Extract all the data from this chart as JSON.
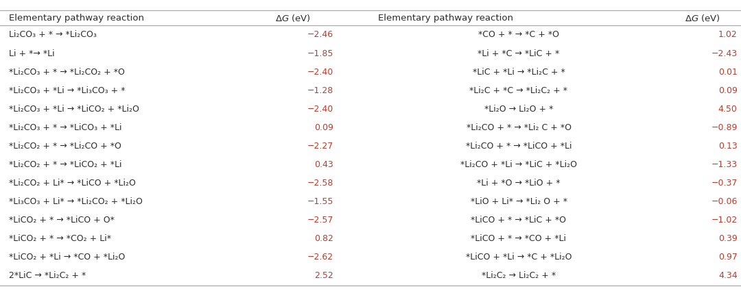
{
  "left_reactions": [
    "Li₂CO₃ + * → *Li₂CO₃",
    "Li + *→ *Li",
    "*Li₂CO₃ + * → *Li₂CO₂ + *O",
    "*Li₂CO₃ + *Li → *Li₃CO₃ + *",
    "*Li₂CO₃ + *Li → *LiCO₂ + *Li₂O",
    "*Li₂CO₃ + * → *LiCO₃ + *Li",
    "*Li₂CO₂ + * → *Li₂CO + *O",
    "*Li₂CO₂ + * → *LiCO₂ + *Li",
    "*Li₂CO₂ + Li* → *LiCO + *Li₂O",
    "*Li₃CO₃ + Li* → *Li₂CO₂ + *Li₂O",
    "*LiCO₂ + * → *LiCO + O*",
    "*LiCO₂ + * → *CO₂ + Li*",
    "*LiCO₂ + *Li → *CO + *Li₂O",
    "2*LiC → *Li₂C₂ + *"
  ],
  "left_dg": [
    "−2.46",
    "−1.85",
    "−2.40",
    "−1.28",
    "−2.40",
    "0.09",
    "−2.27",
    "0.43",
    "−2.58",
    "−1.55",
    "−2.57",
    "0.82",
    "−2.62",
    "2.52"
  ],
  "right_reactions": [
    "*CO + * → *C + *O",
    "*Li + *C → *LiC + *",
    "*LiC + *Li → *Li₂C + *",
    "*Li₂C + *C → *Li₂C₂ + *",
    "*Li₂O → Li₂O + *",
    "*Li₂CO + * → *Li₂ C + *O",
    "*Li₂CO + * → *LiCO + *Li",
    "*Li₂CO + *Li → *LiC + *Li₂O",
    "*Li + *O → *LiO + *",
    "*LiO + Li* → *Li₂ O + *",
    "*LiCO + * → *LiC + *O",
    "*LiCO + * → *CO + *Li",
    "*LiCO + *Li → *C + *Li₂O",
    "*Li₂C₂ → Li₂C₂ + *"
  ],
  "right_dg": [
    "1.02",
    "−2.43",
    "0.01",
    "0.09",
    "4.50",
    "−0.89",
    "0.13",
    "−1.33",
    "−0.37",
    "−0.06",
    "−1.02",
    "0.39",
    "0.97",
    "4.34"
  ],
  "header": "Elementary pathway reaction",
  "bg_color": "#ffffff",
  "text_color": "#2b2b2b",
  "dg_color": "#c0392b",
  "header_color": "#2b2b2b",
  "line_color": "#aaaaaa",
  "font_size": 9.0,
  "header_font_size": 9.5
}
